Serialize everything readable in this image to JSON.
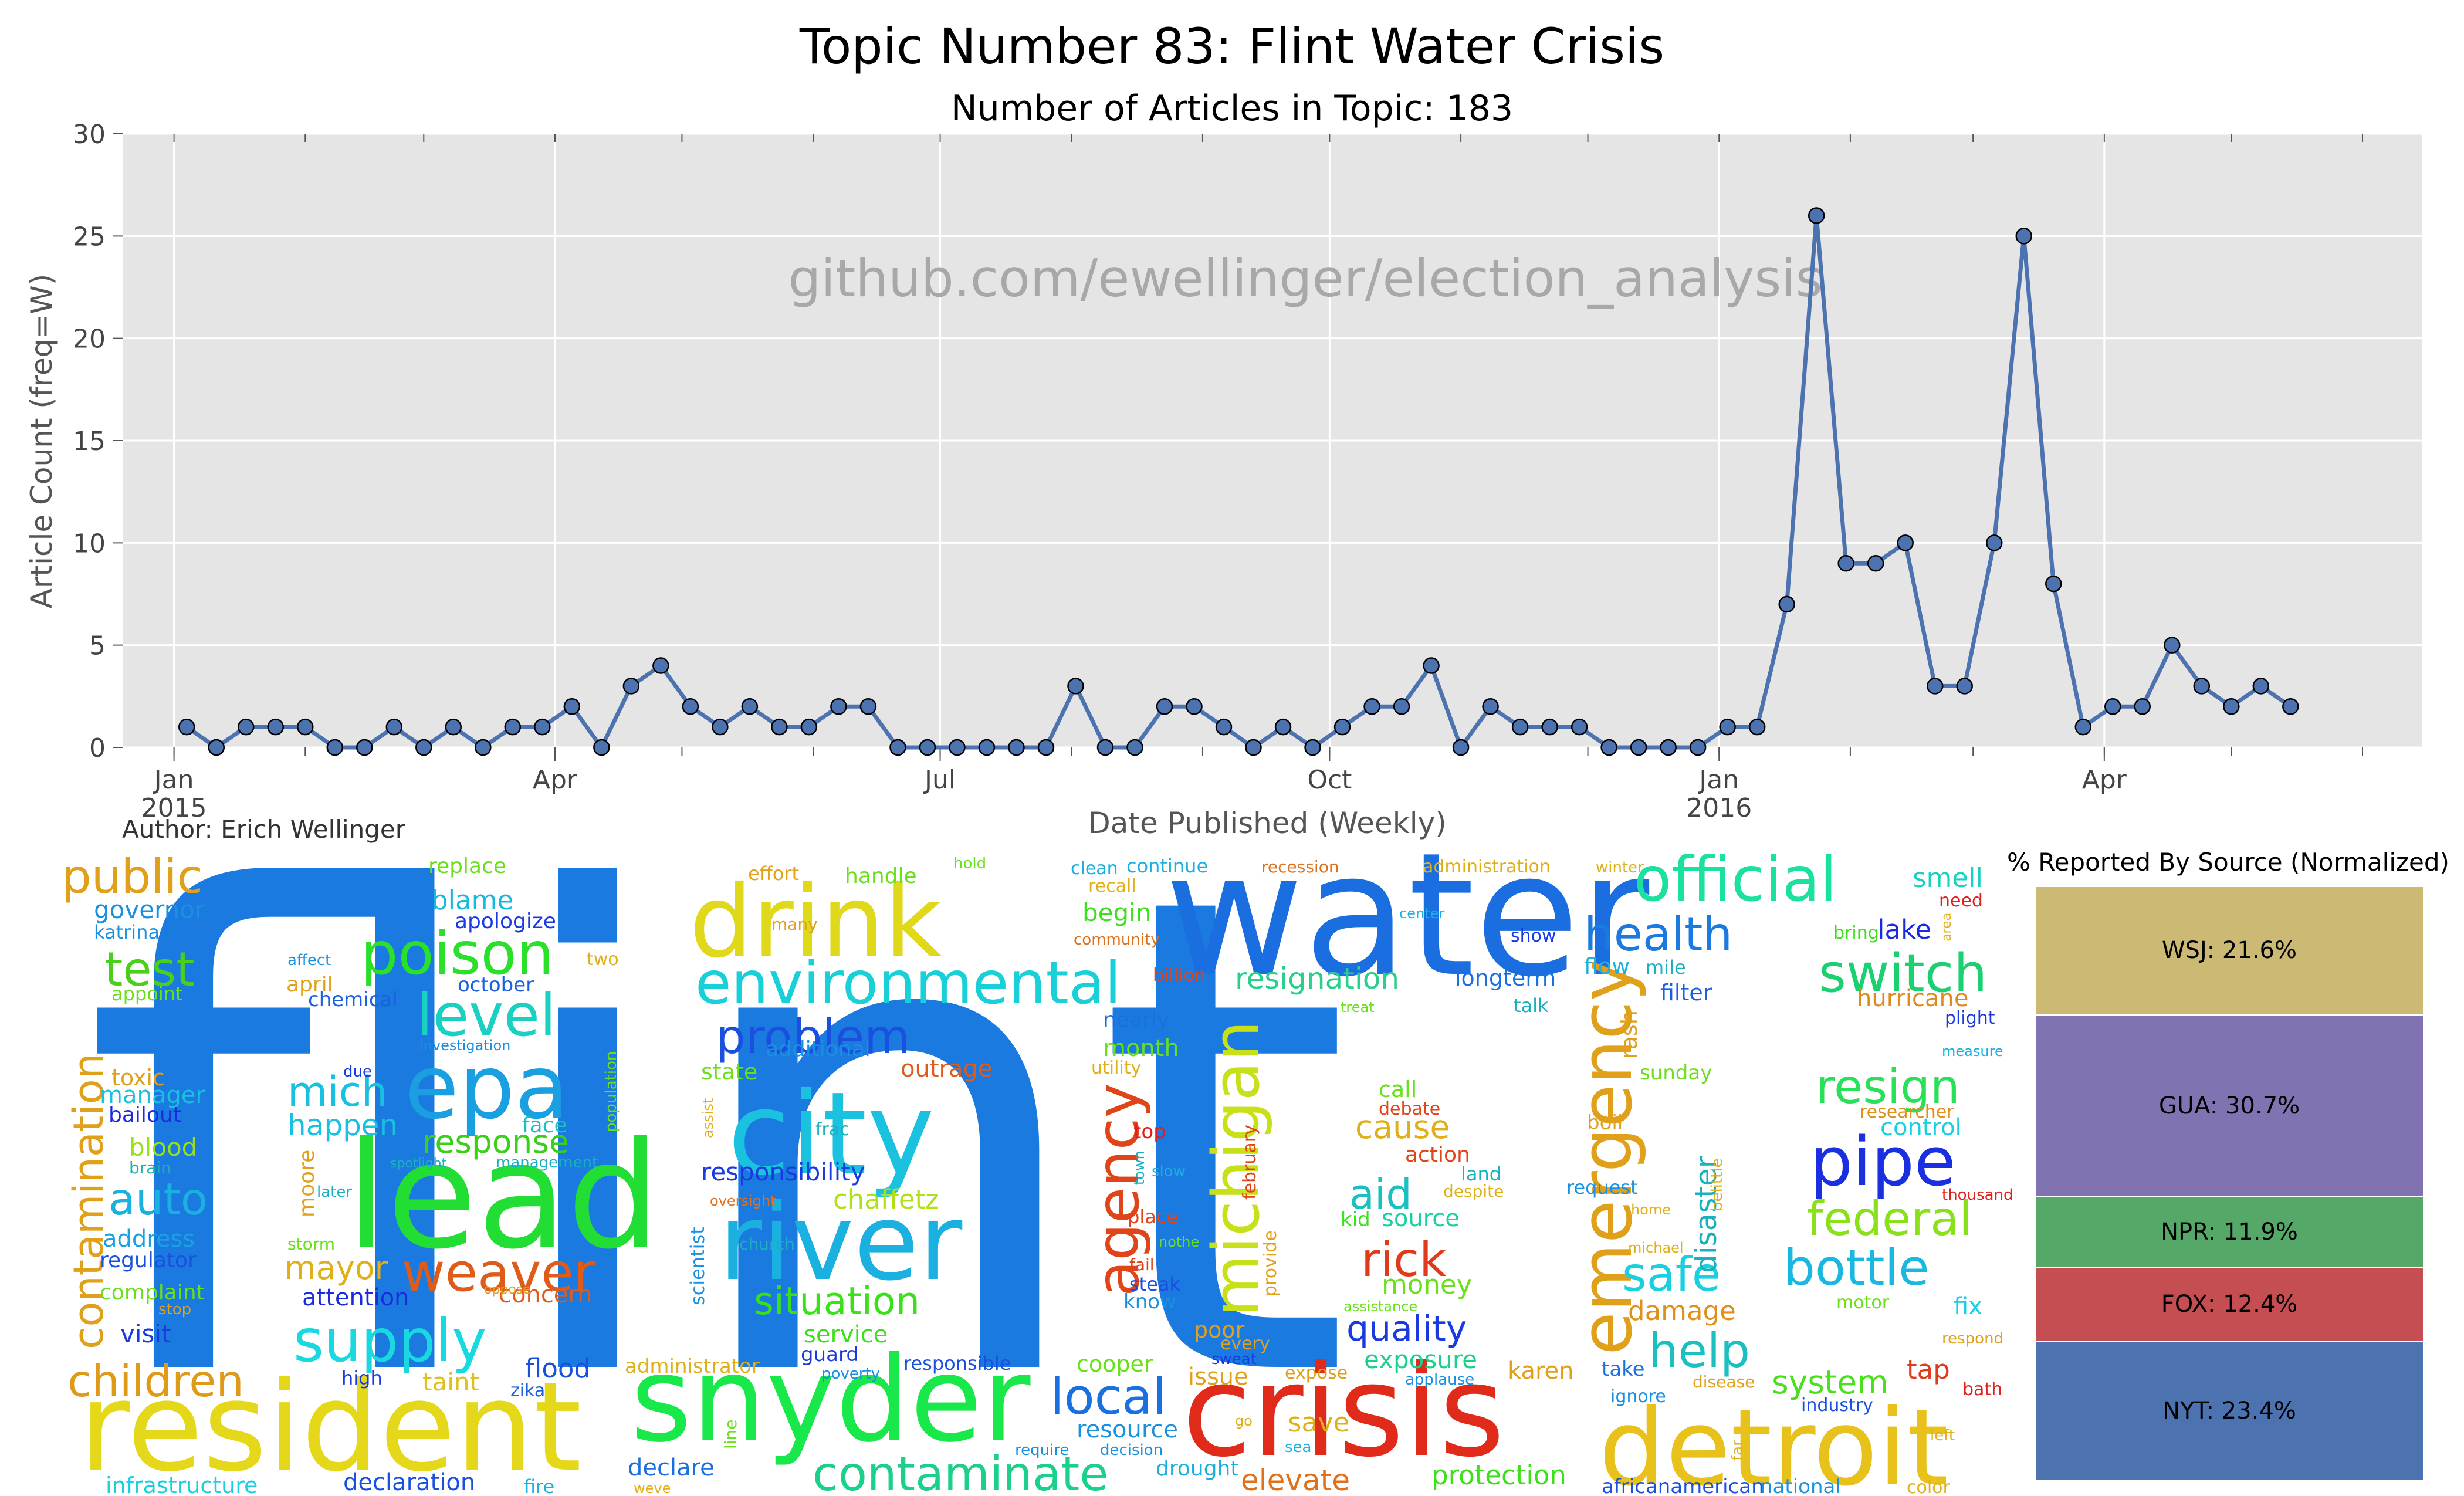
{
  "header": {
    "title": "Topic Number 83: Flint Water Crisis",
    "subtitle": "Number of Articles in Topic: 183",
    "watermark": "github.com/ewellinger/election_analysis",
    "author": "Author: Erich Wellinger"
  },
  "chart_data": {
    "type": "line",
    "title": "Topic Number 83: Flint Water Crisis",
    "subtitle": "Number of Articles in Topic: 183",
    "xlabel": "Date Published (Weekly)",
    "ylabel": "Article Count (freq=W)",
    "ylim": [
      0,
      30
    ],
    "yticks": [
      0,
      5,
      10,
      15,
      20,
      25,
      30
    ],
    "xticks": [
      {
        "label": "Jan",
        "sublabel": "2015",
        "date": "2015-01-01"
      },
      {
        "label": "Apr",
        "sublabel": "",
        "date": "2015-04-01"
      },
      {
        "label": "Jul",
        "sublabel": "",
        "date": "2015-07-01"
      },
      {
        "label": "Oct",
        "sublabel": "",
        "date": "2015-10-01"
      },
      {
        "label": "Jan",
        "sublabel": "2016",
        "date": "2016-01-01"
      },
      {
        "label": "Apr",
        "sublabel": "",
        "date": "2016-04-01"
      }
    ],
    "xlim": [
      "2014-12-20",
      "2016-06-15"
    ],
    "grid": true,
    "line_color": "#4c72b0",
    "background": "#e5e5e5",
    "series": [
      {
        "x": [
          "2015-01-04",
          "2015-01-11",
          "2015-01-18",
          "2015-01-25",
          "2015-02-01",
          "2015-02-08",
          "2015-02-15",
          "2015-02-22",
          "2015-03-01",
          "2015-03-08",
          "2015-03-15",
          "2015-03-22",
          "2015-03-29",
          "2015-04-05",
          "2015-04-12",
          "2015-04-19",
          "2015-04-26",
          "2015-05-03",
          "2015-05-10",
          "2015-05-17",
          "2015-05-24",
          "2015-05-31",
          "2015-06-07",
          "2015-06-14",
          "2015-06-21",
          "2015-06-28",
          "2015-07-05",
          "2015-07-12",
          "2015-07-19",
          "2015-07-26",
          "2015-08-02",
          "2015-08-09",
          "2015-08-16",
          "2015-08-23",
          "2015-08-30",
          "2015-09-06",
          "2015-09-13",
          "2015-09-20",
          "2015-09-27",
          "2015-10-04",
          "2015-10-11",
          "2015-10-18",
          "2015-10-25",
          "2015-11-01",
          "2015-11-08",
          "2015-11-15",
          "2015-11-22",
          "2015-11-29",
          "2015-12-06",
          "2015-12-13",
          "2015-12-20",
          "2015-12-27",
          "2016-01-03",
          "2016-01-10",
          "2016-01-17",
          "2016-01-24",
          "2016-01-31",
          "2016-02-07",
          "2016-02-14",
          "2016-02-21",
          "2016-02-28",
          "2016-03-06",
          "2016-03-13",
          "2016-03-20",
          "2016-03-27",
          "2016-04-03",
          "2016-04-10",
          "2016-04-17",
          "2016-04-24",
          "2016-05-01",
          "2016-05-08",
          "2016-05-15"
        ],
        "values": [
          1,
          0,
          1,
          1,
          1,
          0,
          0,
          1,
          0,
          1,
          0,
          1,
          1,
          2,
          0,
          3,
          4,
          2,
          1,
          2,
          1,
          1,
          2,
          2,
          0,
          0,
          0,
          0,
          0,
          0,
          3,
          0,
          0,
          2,
          2,
          1,
          0,
          1,
          0,
          1,
          2,
          2,
          4,
          0,
          2,
          1,
          1,
          1,
          0,
          0,
          0,
          0,
          1,
          1,
          7,
          26,
          9,
          9,
          10,
          3,
          3,
          10,
          25,
          8,
          1,
          2,
          2,
          5,
          3,
          2,
          3,
          2
        ]
      }
    ]
  },
  "source_panel": {
    "title": "% Reported By Source (Normalized)",
    "segments": [
      {
        "label": "WSJ: 21.6%",
        "value": 21.6,
        "color": "#ccb974"
      },
      {
        "label": "GUA: 30.7%",
        "value": 30.7,
        "color": "#8172b2"
      },
      {
        "label": "NPR: 11.9%",
        "value": 11.9,
        "color": "#55a868"
      },
      {
        "label": "FOX: 12.4%",
        "value": 12.4,
        "color": "#c44e52"
      },
      {
        "label": "NYT: 23.4%",
        "value": 23.4,
        "color": "#4c72b0"
      }
    ]
  },
  "wordcloud": {
    "words": [
      {
        "text": "flint",
        "color": "#1a7ae0"
      },
      {
        "text": "water",
        "color": "#1a6ee0"
      },
      {
        "text": "lead",
        "color": "#22dd33"
      },
      {
        "text": "resident",
        "color": "#e5d81a"
      },
      {
        "text": "snyder",
        "color": "#19e84a"
      },
      {
        "text": "crisis",
        "color": "#e02a1a"
      },
      {
        "text": "detroit",
        "color": "#e8c21a"
      },
      {
        "text": "city",
        "color": "#1ac2e0"
      },
      {
        "text": "river",
        "color": "#1ab0e0"
      },
      {
        "text": "drink",
        "color": "#e0d81a"
      },
      {
        "text": "epa",
        "color": "#1a9fe0"
      },
      {
        "text": "environmental",
        "color": "#1ad0d8"
      },
      {
        "text": "official",
        "color": "#1ae0a0"
      },
      {
        "text": "pipe",
        "color": "#1a2fe0"
      },
      {
        "text": "emergency",
        "color": "#e0a01a"
      },
      {
        "text": "michigan",
        "color": "#c8e01a"
      },
      {
        "text": "agency",
        "color": "#e0451a"
      },
      {
        "text": "poison",
        "color": "#2ae02a"
      },
      {
        "text": "level",
        "color": "#1ad0c0"
      },
      {
        "text": "health",
        "color": "#1a7ae0"
      },
      {
        "text": "switch",
        "color": "#1ad070"
      },
      {
        "text": "test",
        "color": "#4ad01a"
      },
      {
        "text": "public",
        "color": "#e0a01a"
      },
      {
        "text": "contamination",
        "color": "#e0a01a"
      },
      {
        "text": "supply",
        "color": "#1ad8e0"
      },
      {
        "text": "weaver",
        "color": "#e05a1a"
      },
      {
        "text": "problem",
        "color": "#1a50e0"
      },
      {
        "text": "local",
        "color": "#1a70e0"
      },
      {
        "text": "contaminate",
        "color": "#1ad08a"
      },
      {
        "text": "children",
        "color": "#e09a1a"
      },
      {
        "text": "bottle",
        "color": "#1ab8e0"
      },
      {
        "text": "federal",
        "color": "#8ae01a"
      },
      {
        "text": "resign",
        "color": "#2ae05a"
      },
      {
        "text": "help",
        "color": "#1ac0c0"
      },
      {
        "text": "safe",
        "color": "#1ad0e0"
      },
      {
        "text": "auto",
        "color": "#1ab0e0"
      },
      {
        "text": "mich",
        "color": "#1ac0e0"
      },
      {
        "text": "rick",
        "color": "#e03a1a"
      },
      {
        "text": "aid",
        "color": "#1ac0c0"
      },
      {
        "text": "quality",
        "color": "#1a3ae0"
      },
      {
        "text": "situation",
        "color": "#3ae01a"
      },
      {
        "text": "mayor",
        "color": "#e0b01a"
      },
      {
        "text": "response",
        "color": "#3ad01a"
      },
      {
        "text": "happen",
        "color": "#1ac0e0"
      },
      {
        "text": "system",
        "color": "#4ae01a"
      },
      {
        "text": "disaster",
        "color": "#1ab0c0"
      },
      {
        "text": "resignation",
        "color": "#2ad08a"
      },
      {
        "text": "responsibility",
        "color": "#1a3ae0"
      },
      {
        "text": "cause",
        "color": "#e0b01a"
      },
      {
        "text": "damage",
        "color": "#e0901a"
      },
      {
        "text": "lake",
        "color": "#1a2ae0"
      },
      {
        "text": "chaffetz",
        "color": "#b0e01a"
      },
      {
        "text": "outrage",
        "color": "#e05a1a"
      },
      {
        "text": "blame",
        "color": "#1ab8e0"
      },
      {
        "text": "governor",
        "color": "#1a90e0"
      },
      {
        "text": "toxic",
        "color": "#e0a01a"
      },
      {
        "text": "blood",
        "color": "#9ae01a"
      },
      {
        "text": "visit",
        "color": "#1a3ae0"
      },
      {
        "text": "flood",
        "color": "#1a50e0"
      },
      {
        "text": "service",
        "color": "#3ae01a"
      },
      {
        "text": "exposure",
        "color": "#1ad08a"
      },
      {
        "text": "hurricane",
        "color": "#e08a1a"
      },
      {
        "text": "filter",
        "color": "#1a60e0"
      },
      {
        "text": "tap",
        "color": "#e03a1a"
      },
      {
        "text": "save",
        "color": "#e0b01a"
      },
      {
        "text": "infrastructure",
        "color": "#1ad0e0"
      },
      {
        "text": "declaration",
        "color": "#1a50e0"
      },
      {
        "text": "protection",
        "color": "#3ae01a"
      },
      {
        "text": "elevate",
        "color": "#e0701a"
      },
      {
        "text": "karen",
        "color": "#e0a01a"
      },
      {
        "text": "source",
        "color": "#1ad0a0"
      },
      {
        "text": "money",
        "color": "#6ae01a"
      },
      {
        "text": "month",
        "color": "#6ae01a"
      },
      {
        "text": "begin",
        "color": "#3ae01a"
      },
      {
        "text": "longterm",
        "color": "#1a70e0"
      },
      {
        "text": "control",
        "color": "#1ad0e0"
      },
      {
        "text": "fix",
        "color": "#1ad0e0"
      },
      {
        "text": "smell",
        "color": "#1ad0c0"
      },
      {
        "text": "concern",
        "color": "#e05a1a"
      },
      {
        "text": "attention",
        "color": "#1a2ae0"
      },
      {
        "text": "address",
        "color": "#1aa0e0"
      },
      {
        "text": "regulator",
        "color": "#1a50e0"
      },
      {
        "text": "complaint",
        "color": "#6ae01a"
      },
      {
        "text": "manager",
        "color": "#1ac0e0"
      },
      {
        "text": "bailout",
        "color": "#1a2ae0"
      },
      {
        "text": "brain",
        "color": "#1ab0b0"
      },
      {
        "text": "katrina",
        "color": "#1a90e0"
      },
      {
        "text": "appoint",
        "color": "#6ae01a"
      },
      {
        "text": "april",
        "color": "#e0a01a"
      },
      {
        "text": "chemical",
        "color": "#1a60e0"
      },
      {
        "text": "october",
        "color": "#1a60e0"
      },
      {
        "text": "apologize",
        "color": "#1a3ae0"
      },
      {
        "text": "replace",
        "color": "#6ae01a"
      },
      {
        "text": "state",
        "color": "#6ae01a"
      },
      {
        "text": "additional",
        "color": "#1a90e0"
      },
      {
        "text": "face",
        "color": "#1ac0c0"
      },
      {
        "text": "population",
        "color": "#6ae01a"
      },
      {
        "text": "moore",
        "color": "#e0a01a"
      },
      {
        "text": "storm",
        "color": "#6ae01a"
      },
      {
        "text": "high",
        "color": "#1a3ae0"
      },
      {
        "text": "taint",
        "color": "#e0c01a"
      },
      {
        "text": "zika",
        "color": "#1a60e0"
      },
      {
        "text": "guard",
        "color": "#1a3ae0"
      },
      {
        "text": "administrator",
        "color": "#e0b01a"
      },
      {
        "text": "responsible",
        "color": "#1a50e0"
      },
      {
        "text": "cooper",
        "color": "#6ae01a"
      },
      {
        "text": "issue",
        "color": "#e0a01a"
      },
      {
        "text": "resource",
        "color": "#1a90e0"
      },
      {
        "text": "drought",
        "color": "#1ab0e0"
      },
      {
        "text": "declare",
        "color": "#1a70e0"
      },
      {
        "text": "fire",
        "color": "#1ab0e0"
      },
      {
        "text": "nearly",
        "color": "#1a70e0"
      },
      {
        "text": "place",
        "color": "#e0451a"
      },
      {
        "text": "top",
        "color": "#e0201a"
      },
      {
        "text": "call",
        "color": "#6ae01a"
      },
      {
        "text": "action",
        "color": "#e0451a"
      },
      {
        "text": "kid",
        "color": "#3ae01a"
      },
      {
        "text": "sunday",
        "color": "#6ae01a"
      },
      {
        "text": "boil",
        "color": "#e0a01a"
      },
      {
        "text": "rash",
        "color": "#e0a01a"
      },
      {
        "text": "flow",
        "color": "#1ab0e0"
      },
      {
        "text": "mile",
        "color": "#1ab0c0"
      },
      {
        "text": "bring",
        "color": "#3ae01a"
      },
      {
        "text": "need",
        "color": "#e0201a"
      },
      {
        "text": "plight",
        "color": "#1a3ae0"
      },
      {
        "text": "researcher",
        "color": "#e0901a"
      },
      {
        "text": "request",
        "color": "#1a90e0"
      },
      {
        "text": "thousand",
        "color": "#e0201a"
      },
      {
        "text": "motor",
        "color": "#6ae01a"
      },
      {
        "text": "respond",
        "color": "#e0a01a"
      },
      {
        "text": "bath",
        "color": "#e0201a"
      },
      {
        "text": "industry",
        "color": "#1a50e0"
      },
      {
        "text": "take",
        "color": "#1a70e0"
      },
      {
        "text": "africanamerican",
        "color": "#1a50e0"
      },
      {
        "text": "national",
        "color": "#1a90e0"
      },
      {
        "text": "color",
        "color": "#e0b01a"
      },
      {
        "text": "left",
        "color": "#e0b01a"
      },
      {
        "text": "effort",
        "color": "#e0a01a"
      },
      {
        "text": "handle",
        "color": "#6ae01a"
      },
      {
        "text": "hold",
        "color": "#6ae01a"
      },
      {
        "text": "clean",
        "color": "#1ab0e0"
      },
      {
        "text": "continue",
        "color": "#1ab0e0"
      },
      {
        "text": "recession",
        "color": "#e0701a"
      },
      {
        "text": "administration",
        "color": "#e0b01a"
      },
      {
        "text": "winter",
        "color": "#e0b01a"
      },
      {
        "text": "many",
        "color": "#e0a01a"
      },
      {
        "text": "community",
        "color": "#e0701a"
      },
      {
        "text": "recall",
        "color": "#e0b01a"
      },
      {
        "text": "billion",
        "color": "#e0451a"
      },
      {
        "text": "center",
        "color": "#1ab0e0"
      },
      {
        "text": "show",
        "color": "#1a3ae0"
      },
      {
        "text": "talk",
        "color": "#1ab0c0"
      },
      {
        "text": "treat",
        "color": "#6ae01a"
      },
      {
        "text": "utility",
        "color": "#e0b01a"
      },
      {
        "text": "frac",
        "color": "#1ab0c0"
      },
      {
        "text": "investigation",
        "color": "#1a90e0"
      },
      {
        "text": "due",
        "color": "#1a3ae0"
      },
      {
        "text": "affect",
        "color": "#1a90e0"
      },
      {
        "text": "two",
        "color": "#e0b01a"
      },
      {
        "text": "spotlight",
        "color": "#1ab0c0"
      },
      {
        "text": "management",
        "color": "#1ab0c0"
      },
      {
        "text": "later",
        "color": "#1ab0c0"
      },
      {
        "text": "oppose",
        "color": "#e0a01a"
      },
      {
        "text": "stop",
        "color": "#e0a01a"
      },
      {
        "text": "church",
        "color": "#1ab0c0"
      },
      {
        "text": "oversight",
        "color": "#e0701a"
      },
      {
        "text": "scientist",
        "color": "#1a90e0"
      },
      {
        "text": "assist",
        "color": "#e0b01a"
      },
      {
        "text": "line",
        "color": "#6ae01a"
      },
      {
        "text": "poverty",
        "color": "#1a90e0"
      },
      {
        "text": "require",
        "color": "#1a90e0"
      },
      {
        "text": "decision",
        "color": "#1a90e0"
      },
      {
        "text": "weve",
        "color": "#e0b01a"
      },
      {
        "text": "go",
        "color": "#e0b01a"
      },
      {
        "text": "sea",
        "color": "#1ab0e0"
      },
      {
        "text": "expose",
        "color": "#e0a01a"
      },
      {
        "text": "every",
        "color": "#e0a01a"
      },
      {
        "text": "sweat",
        "color": "#1a3ae0"
      },
      {
        "text": "poor",
        "color": "#e0a01a"
      },
      {
        "text": "provide",
        "color": "#e0a01a"
      },
      {
        "text": "february",
        "color": "#e0451a"
      },
      {
        "text": "fail",
        "color": "#e0451a"
      },
      {
        "text": "steak",
        "color": "#1a50e0"
      },
      {
        "text": "know",
        "color": "#1a90e0"
      },
      {
        "text": "nothe",
        "color": "#6ae01a"
      },
      {
        "text": "town",
        "color": "#1ab0c0"
      },
      {
        "text": "slow",
        "color": "#1ab0e0"
      },
      {
        "text": "debate",
        "color": "#e0451a"
      },
      {
        "text": "land",
        "color": "#1ab0c0"
      },
      {
        "text": "despite",
        "color": "#e0b01a"
      },
      {
        "text": "assistance",
        "color": "#6ae01a"
      },
      {
        "text": "applause",
        "color": "#1a90e0"
      },
      {
        "text": "disease",
        "color": "#e0a01a"
      },
      {
        "text": "ignore",
        "color": "#1a90e0"
      },
      {
        "text": "home",
        "color": "#e0b01a"
      },
      {
        "text": "michael",
        "color": "#e0b01a"
      },
      {
        "text": "belittle",
        "color": "#e0b01a"
      },
      {
        "text": "far",
        "color": "#e0b01a"
      },
      {
        "text": "area",
        "color": "#e0b01a"
      },
      {
        "text": "measure",
        "color": "#1ab0e0"
      }
    ]
  }
}
